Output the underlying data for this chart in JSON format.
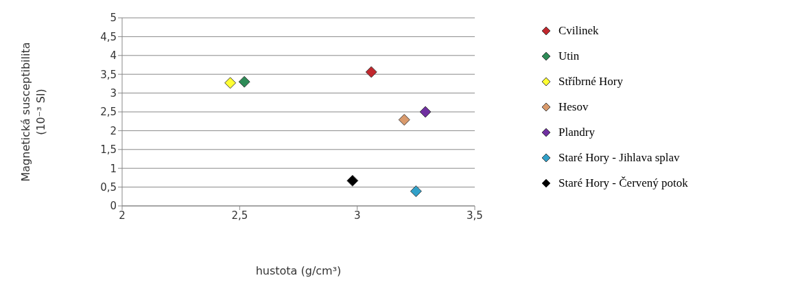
{
  "chart_data": {
    "type": "scatter",
    "xlabel": "hustota (g/cm³)",
    "ylabel": "Magnetická susceptibilita\n(10⁻³ SI)",
    "xlim": [
      2,
      3.5
    ],
    "xticks": [
      2,
      {
        "value": 2.5,
        "label": "2,5"
      },
      3,
      {
        "value": 3.5,
        "label": "3,5"
      }
    ],
    "ylim": [
      0,
      5
    ],
    "yticks": [
      0,
      {
        "value": 0.5,
        "label": "0,5"
      },
      1,
      {
        "value": 1.5,
        "label": "1,5"
      },
      2,
      {
        "value": 2.5,
        "label": "2,5"
      },
      3,
      {
        "value": 3.5,
        "label": "3,5"
      },
      4,
      {
        "value": 4.5,
        "label": "4,5"
      },
      5
    ],
    "grid": "y",
    "legend": "right",
    "marker": "diamond",
    "series": [
      {
        "name": "Cvilinek",
        "color": "#c0272d",
        "x": [
          3.06
        ],
        "values": [
          3.56
        ]
      },
      {
        "name": "Utin",
        "color": "#2e8b57",
        "x": [
          2.52
        ],
        "values": [
          3.3
        ]
      },
      {
        "name": "Stříbrné Hory",
        "color": "#ffff33",
        "x": [
          2.46
        ],
        "values": [
          3.27
        ]
      },
      {
        "name": "Hesov",
        "color": "#d99a6c",
        "x": [
          3.2
        ],
        "values": [
          2.29
        ]
      },
      {
        "name": "Plandry",
        "color": "#7030a0",
        "x": [
          3.29
        ],
        "values": [
          2.5
        ]
      },
      {
        "name": "Staré Hory - Jihlava splav",
        "color": "#31a0c8",
        "x": [
          3.25
        ],
        "values": [
          0.39
        ]
      },
      {
        "name": "Staré Hory - Červený potok",
        "color": "#000000",
        "x": [
          2.98
        ],
        "values": [
          0.67
        ]
      }
    ]
  }
}
